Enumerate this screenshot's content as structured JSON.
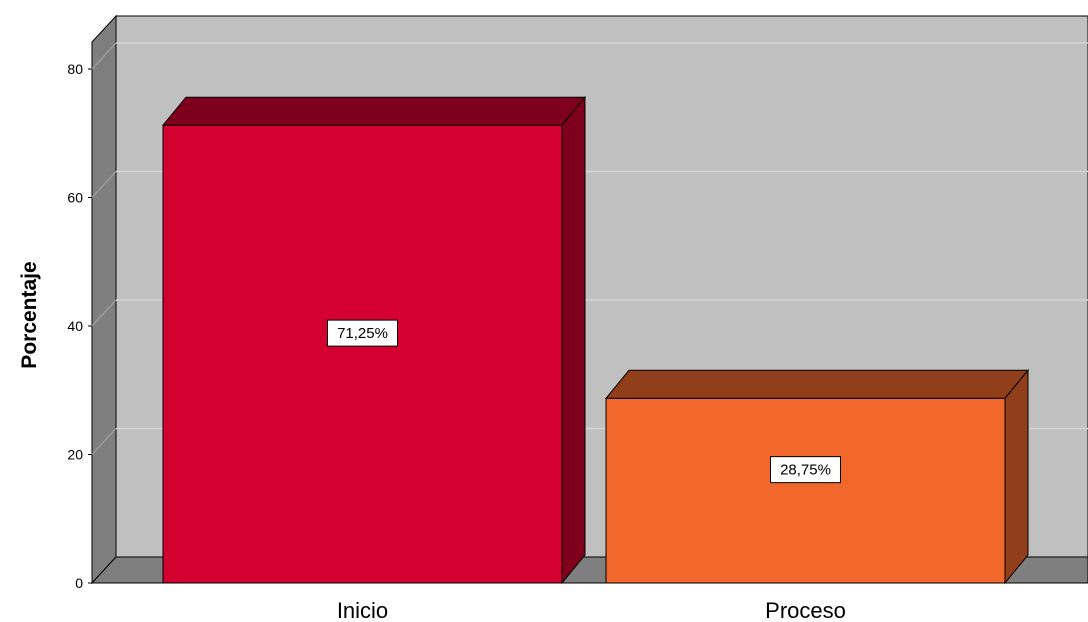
{
  "chart_data": {
    "type": "bar",
    "style": "3d",
    "categories": [
      "Inicio",
      "Proceso"
    ],
    "values": [
      71.25,
      28.75
    ],
    "data_labels": [
      "71,25%",
      "28,75%"
    ],
    "bar_colors": [
      "#d4002f",
      "#f2672b"
    ],
    "ylabel": "Porcentaje",
    "xlabel": "",
    "ylim": [
      0,
      80
    ],
    "yticks": [
      "0",
      "20",
      "40",
      "60",
      "80"
    ],
    "grid": true,
    "legend": "none",
    "colors": {
      "back_wall": "#c0c0c0",
      "side_wall": "#7f7f7f",
      "floor": "#7f7f7f",
      "gridline": "#d4d4d4"
    }
  }
}
